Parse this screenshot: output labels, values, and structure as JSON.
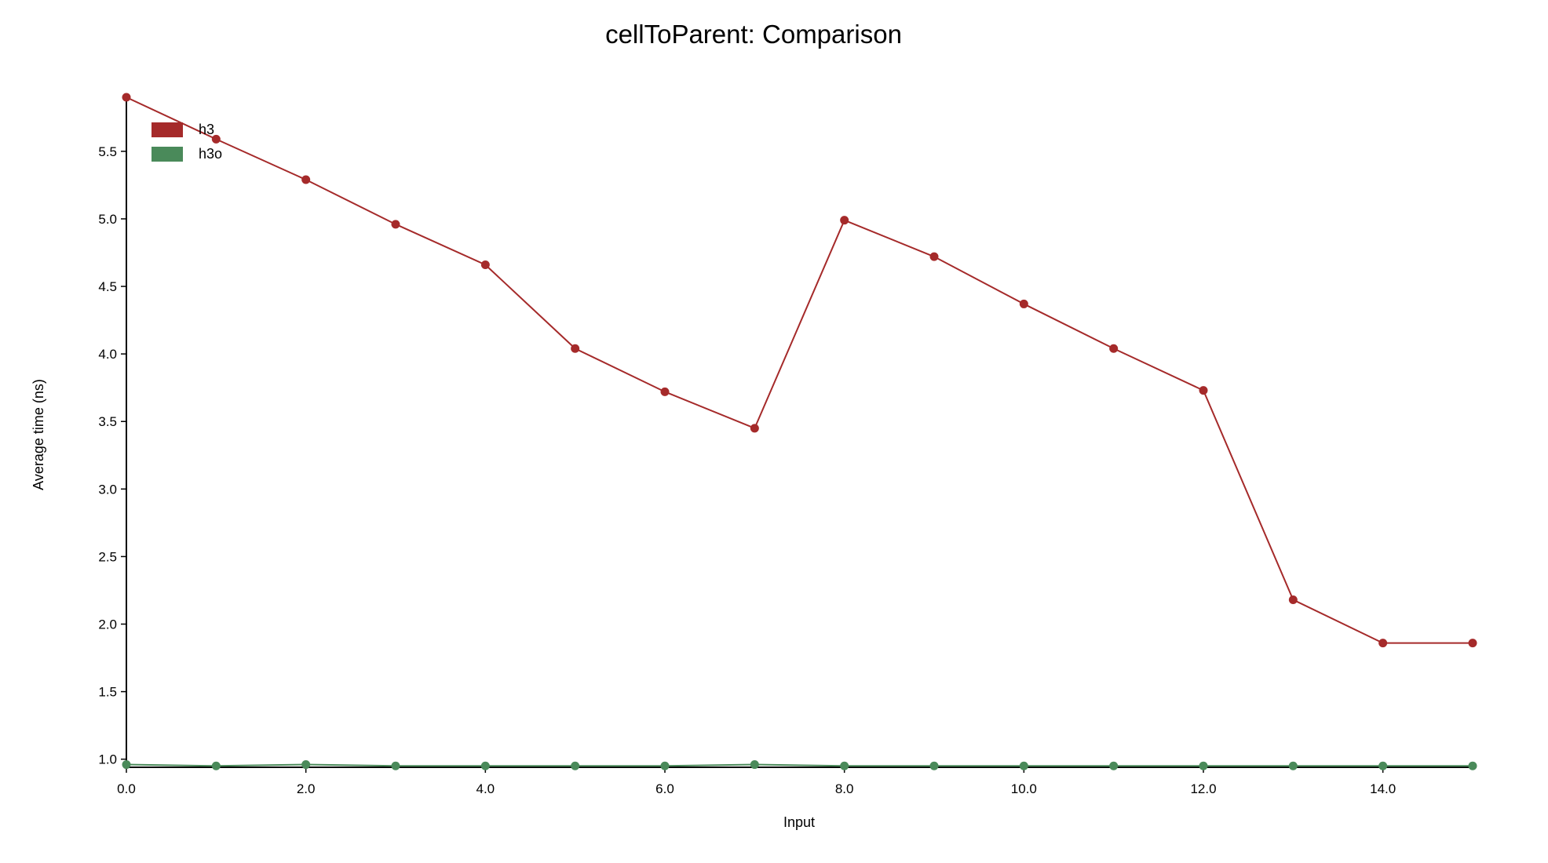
{
  "chart_data": {
    "type": "line",
    "title": "cellToParent: Comparison",
    "xlabel": "Input",
    "ylabel": "Average time (ns)",
    "x": [
      0,
      1,
      2,
      3,
      4,
      5,
      6,
      7,
      8,
      9,
      10,
      11,
      12,
      13,
      14,
      15
    ],
    "xlim": [
      0,
      15
    ],
    "ylim": [
      0.94,
      5.9
    ],
    "x_ticks": [
      {
        "value": 0,
        "label": "0.0"
      },
      {
        "value": 2,
        "label": "2.0"
      },
      {
        "value": 4,
        "label": "4.0"
      },
      {
        "value": 6,
        "label": "6.0"
      },
      {
        "value": 8,
        "label": "8.0"
      },
      {
        "value": 10,
        "label": "10.0"
      },
      {
        "value": 12,
        "label": "12.0"
      },
      {
        "value": 14,
        "label": "14.0"
      }
    ],
    "y_ticks": [
      {
        "value": 1.0,
        "label": "1.0"
      },
      {
        "value": 1.5,
        "label": "1.5"
      },
      {
        "value": 2.0,
        "label": "2.0"
      },
      {
        "value": 2.5,
        "label": "2.5"
      },
      {
        "value": 3.0,
        "label": "3.0"
      },
      {
        "value": 3.5,
        "label": "3.5"
      },
      {
        "value": 4.0,
        "label": "4.0"
      },
      {
        "value": 4.5,
        "label": "4.5"
      },
      {
        "value": 5.0,
        "label": "5.0"
      },
      {
        "value": 5.5,
        "label": "5.5"
      }
    ],
    "grid": false,
    "legend_position": "top-left",
    "series": [
      {
        "name": "h3",
        "color": "#a52a2a",
        "values": [
          5.9,
          5.59,
          5.29,
          4.96,
          4.66,
          4.04,
          3.72,
          3.45,
          4.99,
          4.72,
          4.37,
          4.04,
          3.73,
          2.18,
          1.86,
          1.86
        ]
      },
      {
        "name": "h3o",
        "color": "#4a8a5a",
        "values": [
          0.96,
          0.95,
          0.96,
          0.95,
          0.95,
          0.95,
          0.95,
          0.96,
          0.95,
          0.95,
          0.95,
          0.95,
          0.95,
          0.95,
          0.95,
          0.95
        ]
      }
    ]
  }
}
